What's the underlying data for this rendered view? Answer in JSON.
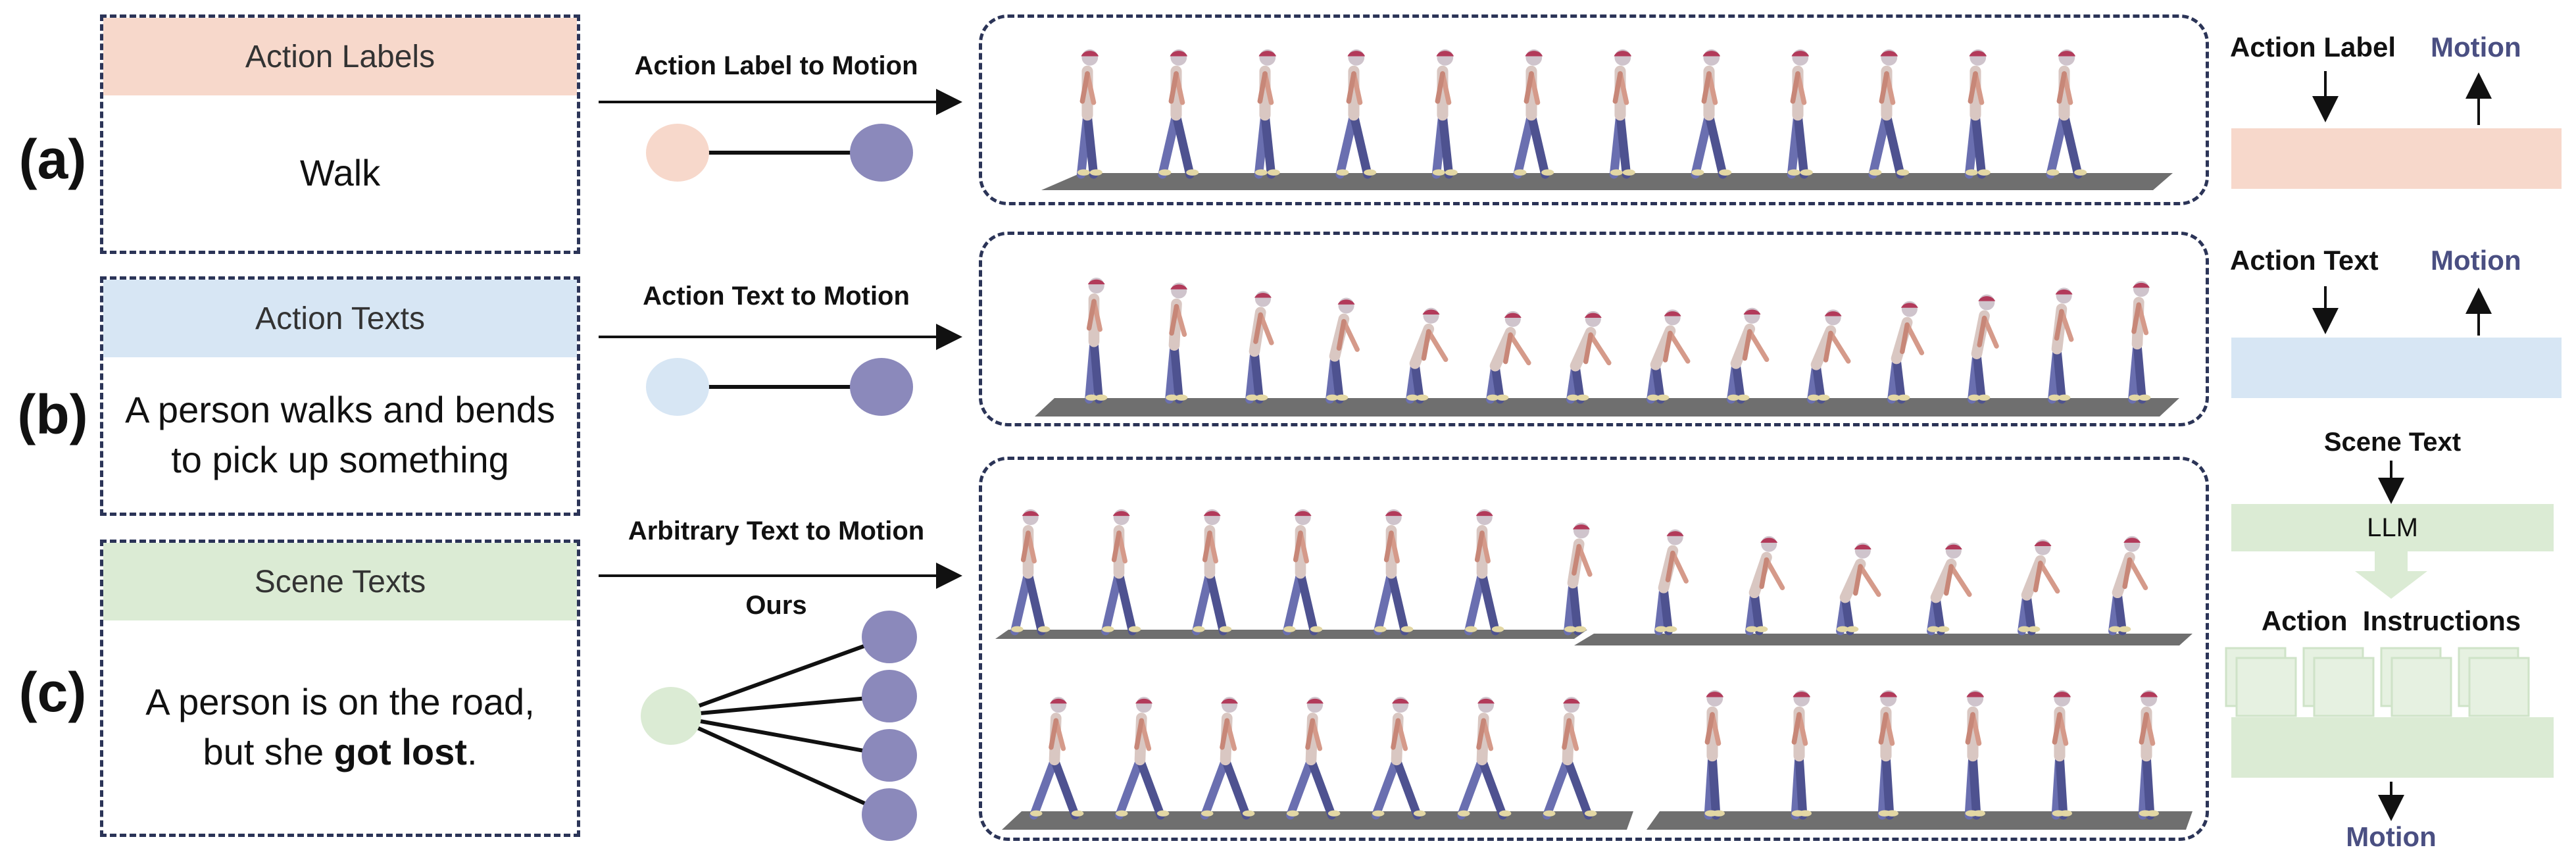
{
  "rows": {
    "a": {
      "label": "(a)",
      "card_header": "Action Labels",
      "card_text_lines": [
        "Walk"
      ],
      "arrow_label": "Action Label to Motion",
      "side_input": "Action Label",
      "side_output": "Motion"
    },
    "b": {
      "label": "(b)",
      "card_header": "Action Texts",
      "card_text_lines": [
        "A person walks and bends",
        "to pick up something"
      ],
      "arrow_label": "Action Text to Motion",
      "side_input": "Action Text",
      "side_output": "Motion"
    },
    "c": {
      "label": "(c)",
      "card_header": "Scene Texts",
      "card_text_line1": "A person is on the road,",
      "card_text_line2_prefix": "but she ",
      "card_text_line2_bold": "got lost",
      "card_text_line2_suffix": ".",
      "arrow_label": "Arbitrary Text to Motion",
      "sub_label": "Ours",
      "side_scene": "Scene Text",
      "side_llm": "LLM",
      "side_instructions": "Action  Instructions",
      "side_output": "Motion"
    }
  },
  "colors": {
    "label_fill": "#f7d8cb",
    "text_fill": "#d7e6f4",
    "scene_fill": "#dbebd4",
    "motion_node": "#8b89bb",
    "border": "#2b3457",
    "motion_text": "#4a4f82",
    "ground": "#6f6f6f"
  }
}
